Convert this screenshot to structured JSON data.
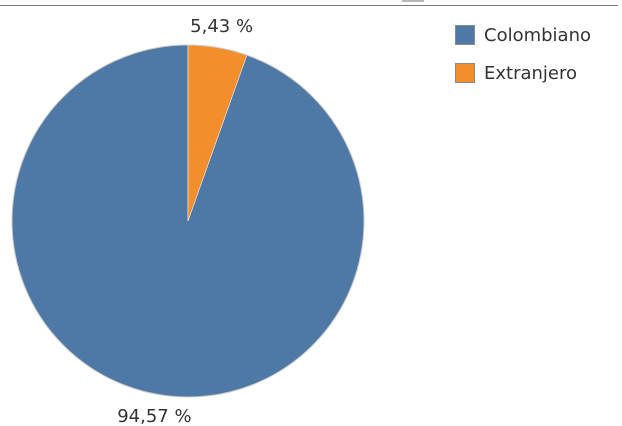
{
  "chart_data": {
    "type": "pie",
    "categories": [
      "Colombiano",
      "Extranjero"
    ],
    "values": [
      94.57,
      5.43
    ],
    "labels": [
      "94,57 %",
      "5,43 %"
    ],
    "colors": [
      "#4e78a6",
      "#f28e2c"
    ],
    "start_angle_deg": 0,
    "direction": "counterclockwise",
    "legend": {
      "position": "top-right",
      "entries": [
        "Colombiano",
        "Extranjero"
      ]
    }
  }
}
